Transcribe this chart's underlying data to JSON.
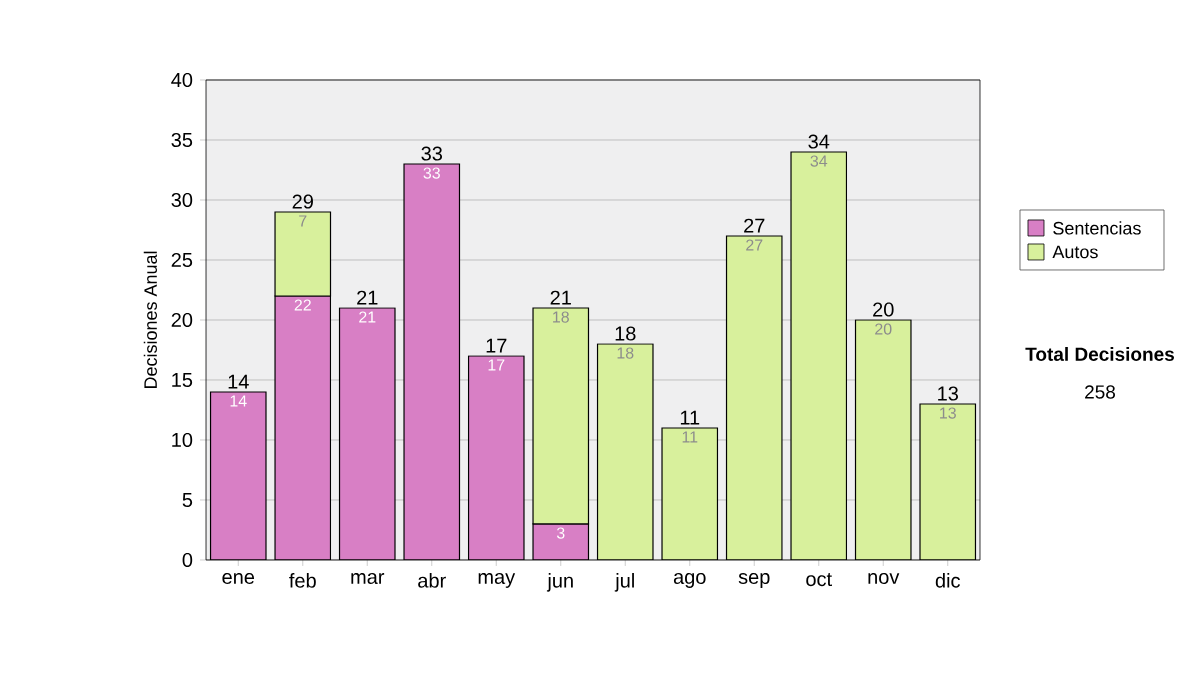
{
  "chart_data": {
    "type": "bar",
    "stacked": true,
    "ylabel": "Decisiones Anual",
    "categories": [
      "ene",
      "feb",
      "mar",
      "abr",
      "may",
      "jun",
      "jul",
      "ago",
      "sep",
      "oct",
      "nov",
      "dic"
    ],
    "series": [
      {
        "name": "Sentencias",
        "color": "#d87fc5",
        "values": [
          14,
          22,
          21,
          33,
          17,
          3,
          null,
          null,
          null,
          null,
          null,
          null
        ]
      },
      {
        "name": "Autos",
        "color": "#d8f09c",
        "values": [
          null,
          7,
          null,
          null,
          null,
          18,
          18,
          11,
          27,
          34,
          20,
          13
        ]
      }
    ],
    "ylim": [
      0,
      40
    ],
    "yticks": [
      0,
      5,
      10,
      15,
      20,
      25,
      30,
      35,
      40
    ],
    "grid": "y",
    "legend": "right",
    "data_labels": true,
    "totals": [
      "14",
      "29",
      "21",
      "33",
      "17",
      "21",
      "18",
      "11",
      "27",
      "34",
      "20",
      "13"
    ],
    "annotations": [
      "**Total Decisiones**",
      "258"
    ]
  }
}
